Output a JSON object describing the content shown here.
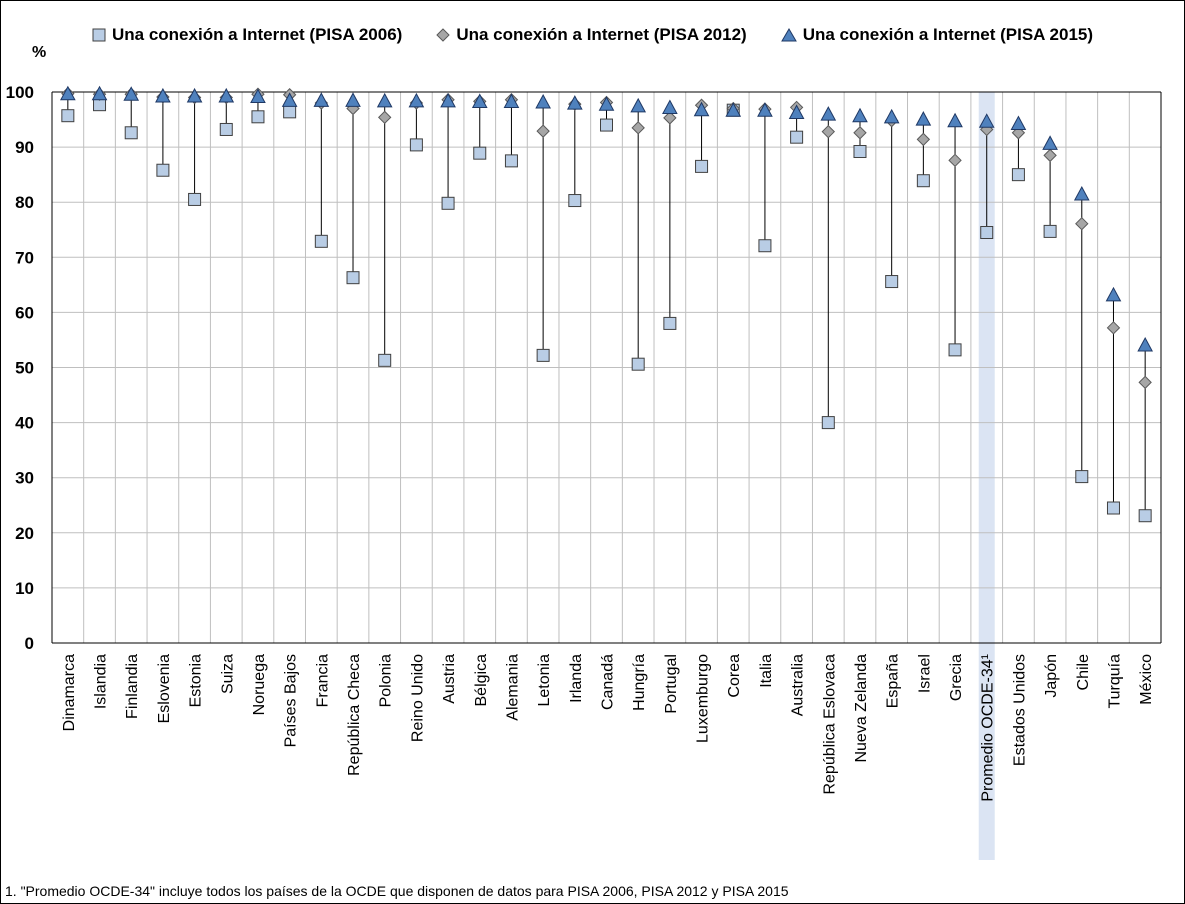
{
  "chart_data": {
    "type": "scatter",
    "ylabel": "%",
    "ylim": [
      0,
      100
    ],
    "yticks": [
      0,
      10,
      20,
      30,
      40,
      50,
      60,
      70,
      80,
      90,
      100
    ],
    "grid": true,
    "legend_position": "top",
    "categories": [
      "Dinamarca",
      "Islandia",
      "Finlandia",
      "Eslovenia",
      "Estonia",
      "Suiza",
      "Noruega",
      "Países Bajos",
      "Francia",
      "República Checa",
      "Polonia",
      "Reino Unido",
      "Austria",
      "Bélgica",
      "Alemania",
      "Letonia",
      "Irlanda",
      "Canadá",
      "Hungría",
      "Portugal",
      "Luxemburgo",
      "Corea",
      "Italia",
      "Australia",
      "República Eslovaca",
      "Nueva Zelanda",
      "España",
      "Israel",
      "Grecia",
      "Promedio OCDE-34¹",
      "Estados Unidos",
      "Japón",
      "Chile",
      "Turquía",
      "México"
    ],
    "highlight_category": "Promedio OCDE-34¹",
    "series": [
      {
        "name": "Una conexión a Internet (PISA 2006)",
        "marker": "square",
        "color": "#b9cde5",
        "values": [
          95.7,
          97.7,
          92.6,
          85.8,
          80.5,
          93.2,
          95.5,
          96.4,
          72.9,
          66.3,
          51.3,
          90.4,
          79.8,
          88.9,
          87.5,
          52.2,
          80.3,
          94,
          50.6,
          58,
          86.5,
          96.7,
          72.1,
          91.8,
          40,
          89.2,
          65.6,
          83.9,
          53.2,
          74.5,
          85,
          74.7,
          30.2,
          24.5,
          23.1
        ]
      },
      {
        "name": "Una conexión a Internet (PISA 2012)",
        "marker": "diamond",
        "color": "#a6a6a6",
        "values": [
          99.7,
          99.6,
          99.6,
          99.1,
          99,
          99,
          99.6,
          99.5,
          98,
          97,
          95.4,
          98,
          98.6,
          98.3,
          98.6,
          92.9,
          97.8,
          98.1,
          93.5,
          95.3,
          97.6,
          97,
          96.9,
          97.2,
          92.8,
          92.6,
          94.8,
          91.4,
          87.6,
          93.2,
          92.6,
          88.5,
          76.1,
          57.2,
          47.3
        ]
      },
      {
        "name": "Una conexión a Internet (PISA 2015)",
        "marker": "triangle",
        "color": "#4f81bd",
        "values": [
          99.5,
          99.5,
          99.4,
          99.1,
          99.1,
          99.1,
          99,
          98.3,
          98.3,
          98.3,
          98.2,
          98.2,
          98.2,
          98.1,
          98.1,
          98,
          97.8,
          97.6,
          97.3,
          97,
          96.6,
          96.5,
          96.5,
          96.1,
          95.8,
          95.5,
          95.3,
          94.9,
          94.6,
          94.5,
          94.1,
          90.5,
          81.3,
          63,
          53.9
        ]
      }
    ]
  },
  "legend": {
    "items": [
      {
        "label": "Una conexión a Internet (PISA 2006)"
      },
      {
        "label": "Una conexión a Internet (PISA 2012)"
      },
      {
        "label": "Una conexión a Internet (PISA 2015)"
      }
    ]
  },
  "footnote": "1. \"Promedio OCDE-34\" incluye todos los países de la OCDE que disponen de datos para PISA 2006, PISA 2012 y PISA 2015"
}
